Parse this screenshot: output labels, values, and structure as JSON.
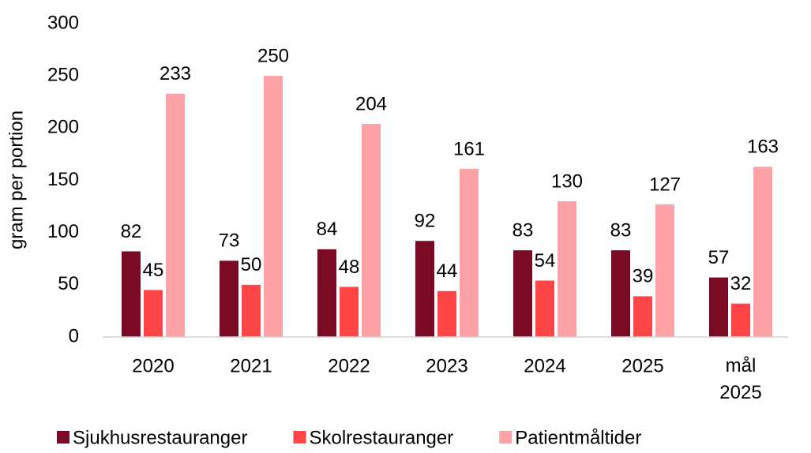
{
  "chart_data": {
    "type": "bar",
    "y_label": "gram per portion",
    "categories": [
      "2020",
      "2021",
      "2022",
      "2023",
      "2024",
      "2025",
      "mål 2025"
    ],
    "series": [
      {
        "name": "Sjukhusrestauranger",
        "color": "#7b0a24",
        "values": [
          82,
          73,
          84,
          92,
          83,
          83,
          57
        ]
      },
      {
        "name": "Skolrestauranger",
        "color": "#ff4545",
        "values": [
          45,
          50,
          48,
          44,
          54,
          39,
          32
        ]
      },
      {
        "name": "Patientmåltider",
        "color": "#ffa2a8",
        "values": [
          233,
          250,
          204,
          161,
          130,
          127,
          163
        ]
      }
    ],
    "ylim": [
      0,
      300
    ],
    "yticks": [
      0,
      50,
      100,
      150,
      200,
      250,
      300
    ],
    "grid": false,
    "legend": "bottom"
  }
}
